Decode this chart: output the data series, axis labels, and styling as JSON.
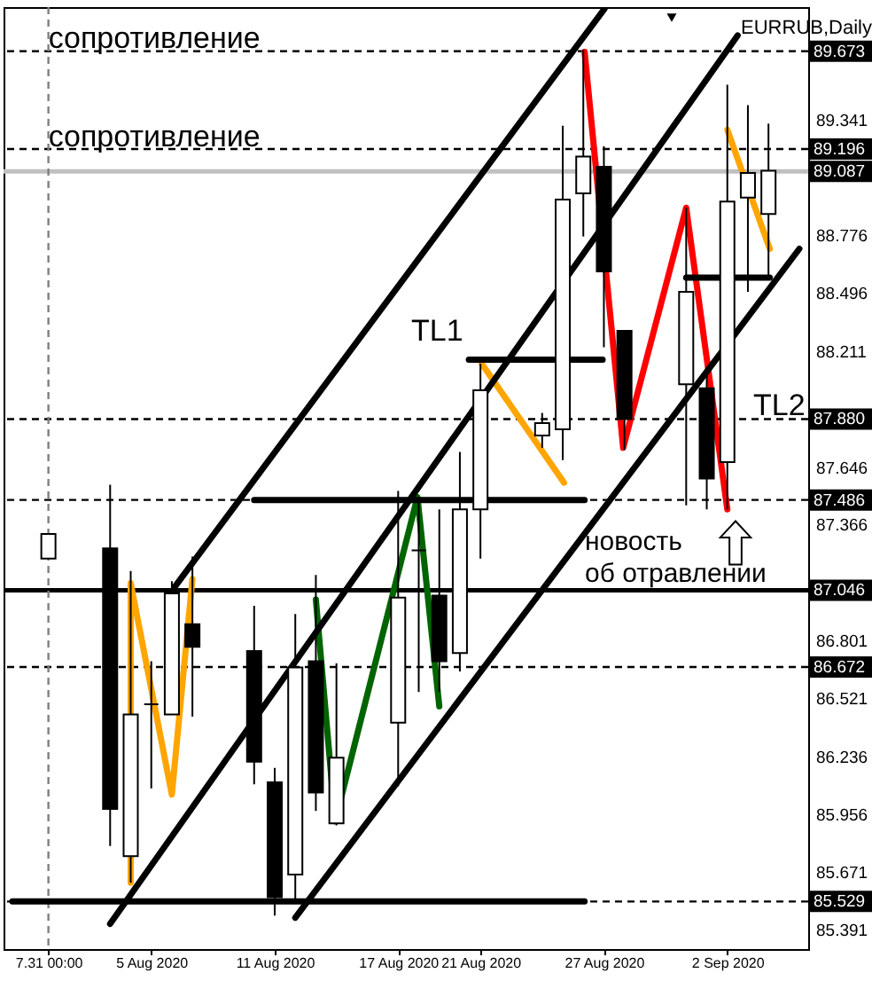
{
  "chart_data": {
    "type": "candlestick",
    "title": "EURRUB,Daily",
    "x": [
      "2020-07-31",
      "2020-08-03",
      "2020-08-04",
      "2020-08-05",
      "2020-08-06",
      "2020-08-07",
      "2020-08-10",
      "2020-08-11",
      "2020-08-12",
      "2020-08-13",
      "2020-08-14",
      "2020-08-17",
      "2020-08-18",
      "2020-08-19",
      "2020-08-20",
      "2020-08-21",
      "2020-08-24",
      "2020-08-25",
      "2020-08-26",
      "2020-08-27",
      "2020-08-28",
      "2020-08-31",
      "2020-09-01",
      "2020-09-02",
      "2020-09-03",
      "2020-09-04"
    ],
    "ohlc": [
      [
        87.2,
        87.32,
        87.2,
        87.32
      ],
      [
        87.25,
        87.56,
        85.8,
        85.98
      ],
      [
        85.75,
        87.14,
        85.62,
        86.44
      ],
      [
        86.49,
        86.7,
        86.08,
        86.49
      ],
      [
        86.44,
        87.09,
        86.44,
        87.03
      ],
      [
        86.88,
        87.21,
        86.43,
        86.77
      ],
      [
        86.75,
        86.97,
        86.1,
        86.21
      ],
      [
        86.11,
        86.18,
        85.46,
        85.55
      ],
      [
        85.66,
        86.93,
        85.54,
        86.67
      ],
      [
        86.7,
        87.12,
        85.97,
        86.06
      ],
      [
        85.91,
        86.69,
        85.9,
        86.23
      ],
      [
        86.4,
        87.53,
        86.09,
        87.01
      ],
      [
        87.24,
        87.5,
        86.55,
        87.24
      ],
      [
        87.02,
        87.44,
        86.55,
        86.7
      ],
      [
        86.74,
        87.72,
        86.65,
        87.44
      ],
      [
        87.44,
        88.15,
        87.2,
        88.02
      ],
      [
        87.8,
        87.91,
        87.74,
        87.86
      ],
      [
        87.83,
        89.31,
        87.68,
        88.95
      ],
      [
        88.98,
        89.68,
        88.77,
        89.16
      ],
      [
        89.11,
        89.21,
        88.23,
        88.6
      ],
      [
        88.31,
        88.31,
        87.73,
        87.88
      ],
      [
        88.05,
        88.91,
        87.46,
        88.5
      ],
      [
        88.03,
        88.13,
        87.44,
        87.59
      ],
      [
        87.67,
        89.51,
        87.44,
        88.94
      ],
      [
        88.96,
        89.41,
        88.5,
        89.08
      ],
      [
        88.88,
        89.32,
        88.57,
        89.09
      ]
    ],
    "xlim": [
      "2020-07-29T06:00",
      "2020-09-05T12:00"
    ],
    "xticks": [
      {
        "value": "2020-07-31",
        "label": "7.31 00:00"
      },
      {
        "value": "2020-08-05",
        "label": "5 Aug 2020"
      },
      {
        "value": "2020-08-11",
        "label": "11 Aug 2020"
      },
      {
        "value": "2020-08-17",
        "label": "17 Aug 2020"
      },
      {
        "value": "2020-08-21",
        "label": "21 Aug 2020"
      },
      {
        "value": "2020-08-27",
        "label": "27 Aug 2020"
      },
      {
        "value": "2020-09-02",
        "label": "2 Sep 2020"
      }
    ],
    "ylim": [
      85.297,
      89.888
    ],
    "yticks": [
      85.391,
      85.671,
      85.956,
      86.236,
      86.521,
      86.801,
      87.366,
      87.646,
      88.211,
      88.496,
      88.776,
      89.341
    ],
    "series": [
      {
        "type": "line",
        "color": "#ffa500",
        "x": [
          "2020-08-04",
          "2020-08-04",
          "2020-08-06",
          "2020-08-07"
        ],
        "values": [
          85.62,
          87.08,
          86.05,
          87.1
        ]
      },
      {
        "type": "line",
        "color": "#006400",
        "x": [
          "2020-08-13",
          "2020-08-13T22:30",
          "2020-08-17T22:30",
          "2020-08-19"
        ],
        "values": [
          87.0,
          85.92,
          87.5,
          86.48
        ]
      },
      {
        "type": "line",
        "color": "#ffa500",
        "x": [
          "2020-08-21T01:30",
          "2020-08-25T01:30"
        ],
        "values": [
          88.15,
          87.57
        ]
      },
      {
        "type": "line",
        "color": "#ff0000",
        "x": [
          "2020-08-26T01:30",
          "2020-08-27T22:30",
          "2020-08-31",
          "2020-09-02"
        ],
        "values": [
          89.67,
          87.74,
          88.91,
          87.44
        ]
      },
      {
        "type": "line",
        "color": "#ffa500",
        "x": [
          "2020-09-02",
          "2020-09-04T01:30"
        ],
        "values": [
          89.29,
          88.71
        ]
      },
      {
        "type": "line",
        "color": "#000000",
        "x": [
          "2020-08-03",
          "2020-09-02T12:00"
        ],
        "values": [
          85.42,
          89.75
        ]
      },
      {
        "type": "line",
        "color": "#000000",
        "x": [
          "2020-08-12",
          "2020-09-05T12:00"
        ],
        "values": [
          85.45,
          88.71
        ]
      },
      {
        "type": "line",
        "color": "#000000",
        "x": [
          "2020-08-06T03:00",
          "2020-08-27T00:45"
        ],
        "values": [
          87.06,
          89.88
        ]
      },
      {
        "type": "line",
        "color": "#000000",
        "x": [
          "2020-08-10",
          "2020-08-26T01:30"
        ],
        "values": [
          87.486,
          87.486
        ]
      },
      {
        "type": "line",
        "color": "#000000",
        "x": [
          "2020-07-29T06:00",
          "2020-08-26T01:30"
        ],
        "values": [
          85.529,
          85.529
        ]
      },
      {
        "type": "line",
        "color": "#000000",
        "x": [
          "2020-08-20T10:30",
          "2020-08-26T22:30"
        ],
        "values": [
          88.17,
          88.17
        ]
      },
      {
        "type": "line",
        "color": "#000000",
        "x": [
          "2020-08-31",
          "2020-09-04T01:30"
        ],
        "values": [
          88.57,
          88.57
        ]
      }
    ],
    "ref_lines": [
      {
        "axis": "y",
        "value": 89.673,
        "label": "89.673",
        "line_style": "dashed",
        "color": "#000000"
      },
      {
        "axis": "y",
        "value": 89.196,
        "label": "89.196",
        "line_style": "dashed",
        "color": "#000000"
      },
      {
        "axis": "y",
        "value": 89.087,
        "label": "89.087",
        "line_style": "solid",
        "color": "#c0c0c0"
      },
      {
        "axis": "y",
        "value": 87.88,
        "label": "87.880",
        "line_style": "dashed",
        "color": "#000000"
      },
      {
        "axis": "y",
        "value": 87.486,
        "label": "87.486",
        "line_style": "dashed",
        "color": "#000000"
      },
      {
        "axis": "y",
        "value": 87.046,
        "label": "87.046",
        "line_style": "solid",
        "color": "#000000"
      },
      {
        "axis": "y",
        "value": 86.672,
        "label": "86.672",
        "line_style": "dashed",
        "color": "#000000"
      },
      {
        "axis": "y",
        "value": 85.529,
        "label": "85.529",
        "line_style": "dashed",
        "color": "#000000"
      },
      {
        "axis": "x",
        "value": "2020-07-31",
        "line_style": "dashed",
        "color": "#808080"
      }
    ],
    "annotations": [
      {
        "text": "сопротивление",
        "x": "2020-07-31",
        "y": 89.69
      },
      {
        "text": "сопротивление",
        "x": "2020-07-31",
        "y": 89.21
      },
      "TL1",
      "TL2",
      "новость",
      "об отравлении"
    ]
  }
}
